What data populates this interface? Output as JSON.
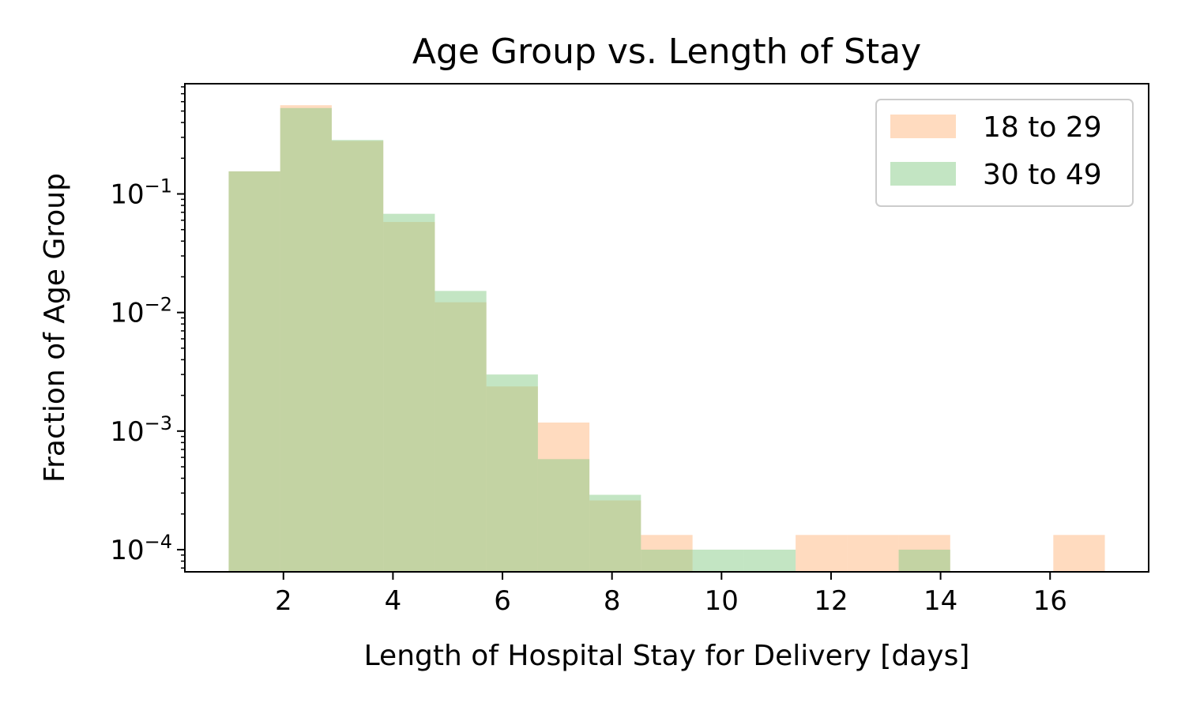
{
  "chart_data": {
    "type": "histogram",
    "title": "Age Group vs. Length of Stay",
    "xlabel": "Length of Hospital Stay for Delivery [days]",
    "ylabel": "Fraction of Age Group",
    "xlim": [
      0.2,
      17.8
    ],
    "ylim": [
      6.5e-05,
      0.85
    ],
    "yscale": "log",
    "x_ticks": [
      2,
      4,
      6,
      8,
      10,
      12,
      14,
      16
    ],
    "y_ticks": [
      {
        "value": 0.1,
        "base": "10",
        "exp": "−1"
      },
      {
        "value": 0.01,
        "base": "10",
        "exp": "−2"
      },
      {
        "value": 0.001,
        "base": "10",
        "exp": "−3"
      },
      {
        "value": 0.0001,
        "base": "10",
        "exp": "−4"
      }
    ],
    "bin_edges": [
      1.0,
      1.941,
      2.882,
      3.824,
      4.765,
      5.706,
      6.647,
      7.588,
      8.529,
      9.471,
      10.412,
      11.353,
      12.294,
      13.235,
      14.176,
      15.118,
      16.059,
      17.0
    ],
    "series": [
      {
        "name": "18 to 29",
        "color": "#ffb880",
        "values": [
          0.155,
          0.56,
          0.28,
          0.058,
          0.0122,
          0.00238,
          0.00118,
          0.00026,
          0.000133,
          0,
          0,
          0.000133,
          0.000133,
          0.000133,
          0,
          0,
          0.000133
        ]
      },
      {
        "name": "30 to 49",
        "color": "#88cc88",
        "values": [
          0.155,
          0.53,
          0.285,
          0.068,
          0.0152,
          0.003,
          0.00058,
          0.00029,
          0.0001,
          0.0001,
          0.0001,
          0,
          0,
          0.0001,
          0,
          0,
          0
        ]
      }
    ],
    "legend": {
      "position": "top-right"
    },
    "grid": false
  }
}
